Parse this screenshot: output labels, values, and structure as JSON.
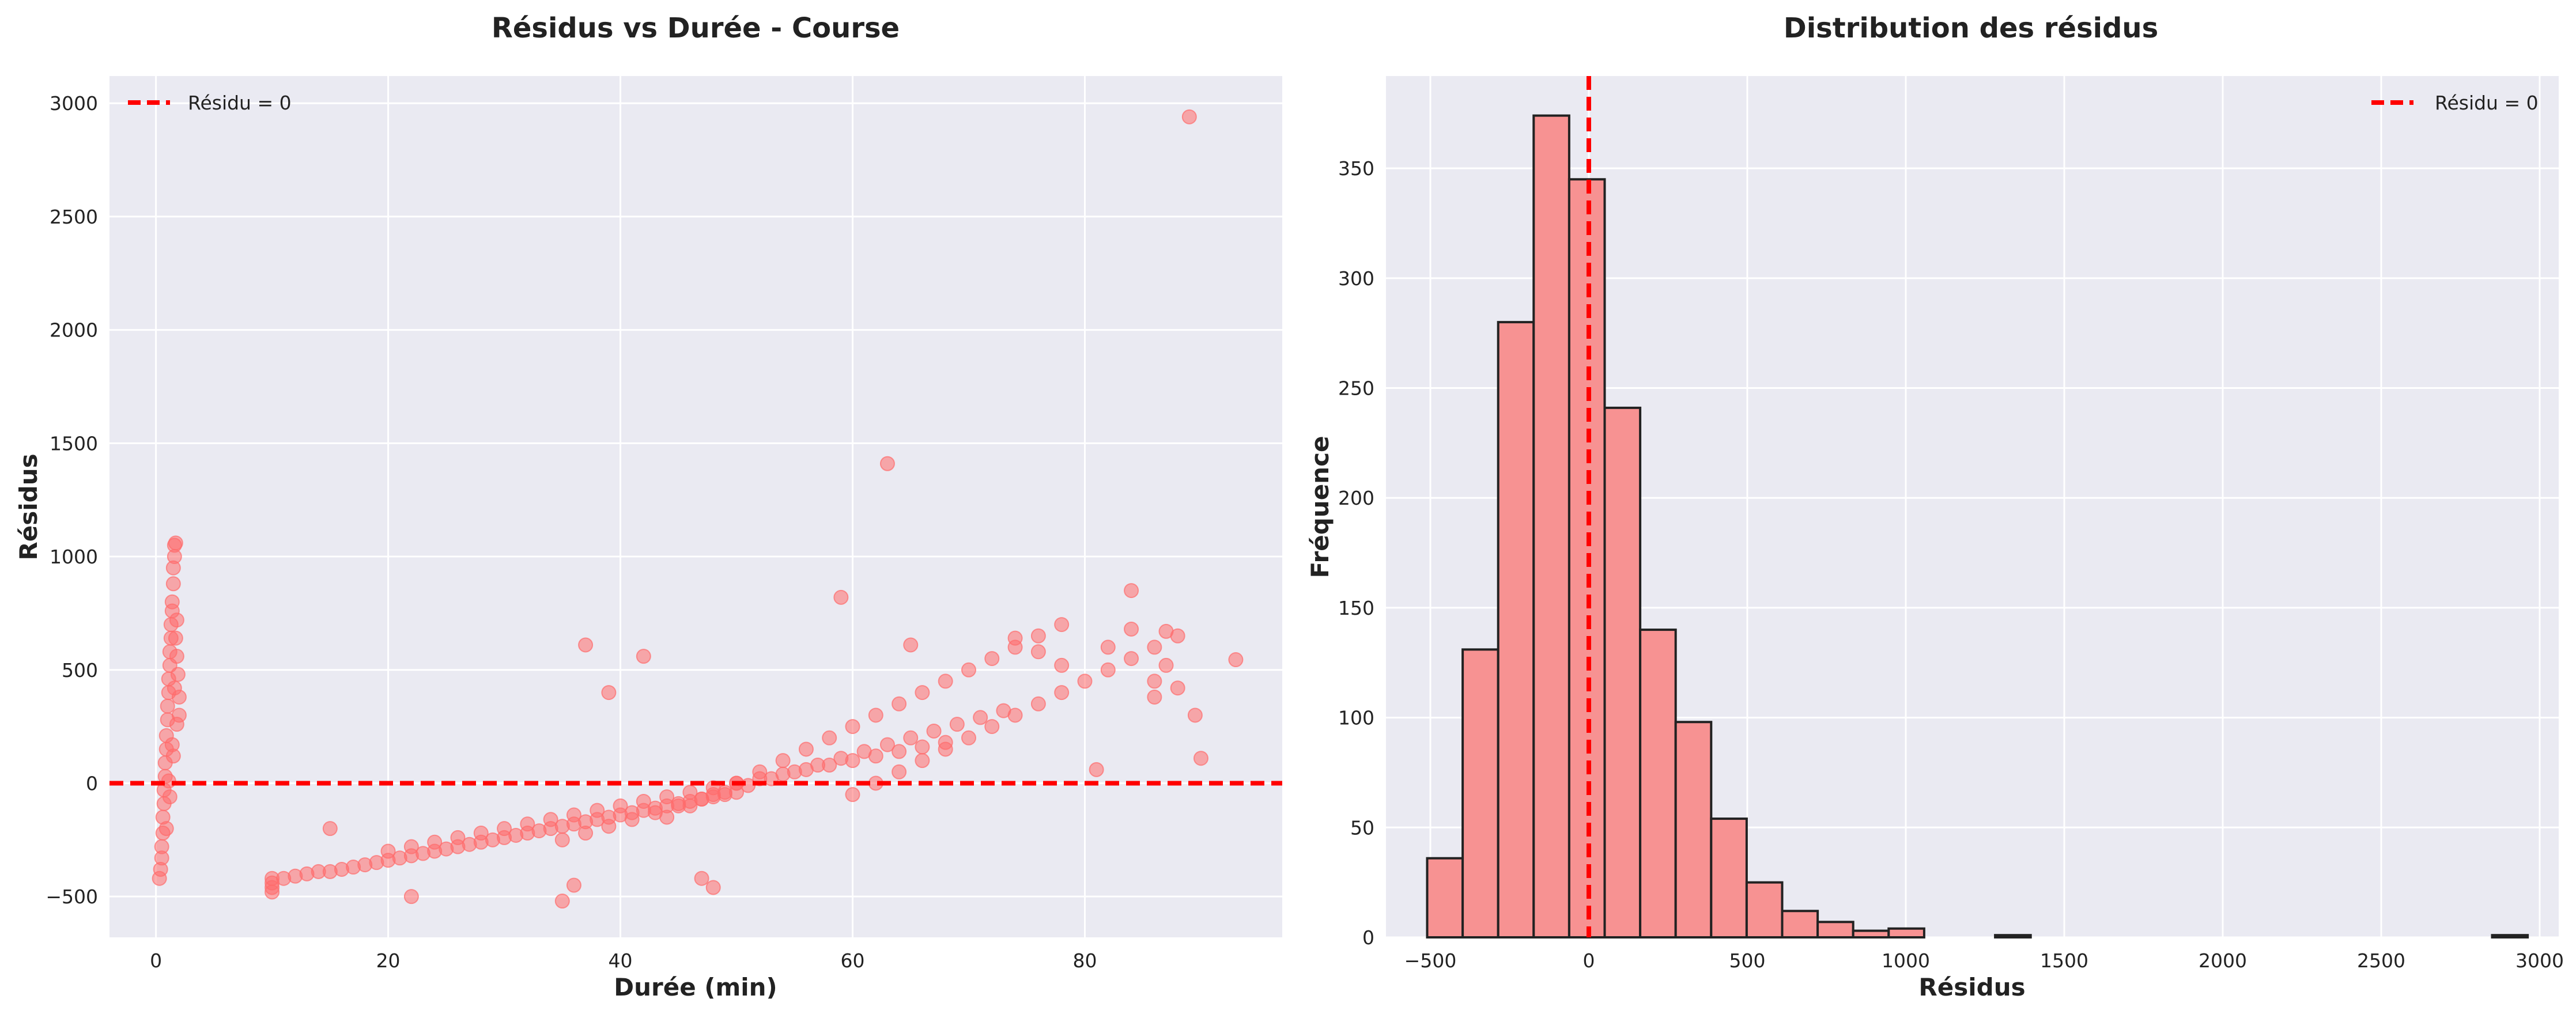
{
  "chart_data": [
    {
      "type": "scatter",
      "title": "Résidus vs Durée - Course",
      "xlabel": "Durée (min)",
      "ylabel": "Résidus",
      "xlim": [
        -4,
        97
      ],
      "ylim": [
        -680,
        3120
      ],
      "xticks": [
        0,
        20,
        40,
        60,
        80
      ],
      "yticks": [
        -500,
        0,
        500,
        1000,
        1500,
        2000,
        2500,
        3000
      ],
      "grid": true,
      "legend": {
        "placement": "top-left",
        "entries": [
          "Résidu = 0"
        ]
      },
      "reference_line": {
        "label": "Résidu = 0",
        "y": 0,
        "color": "#ff0000"
      },
      "point_color": "#ff6b6b",
      "series": [
        {
          "points_note": "representative sample read off the plot",
          "x": [
            0.3,
            0.4,
            0.5,
            0.5,
            0.6,
            0.6,
            0.7,
            0.7,
            0.8,
            0.8,
            0.9,
            0.9,
            1.0,
            1.0,
            1.1,
            1.1,
            1.2,
            1.2,
            1.3,
            1.3,
            1.4,
            1.4,
            1.5,
            1.5,
            1.6,
            1.6,
            1.7,
            1.7,
            1.8,
            1.8,
            1.9,
            2.0,
            2.0,
            1.2,
            1.5,
            1.8,
            0.9,
            1.1,
            1.4,
            1.6,
            10,
            10,
            10,
            10,
            11,
            12,
            13,
            14,
            15,
            16,
            17,
            18,
            19,
            20,
            21,
            22,
            23,
            24,
            25,
            26,
            27,
            28,
            29,
            30,
            31,
            32,
            33,
            34,
            35,
            36,
            37,
            38,
            39,
            40,
            41,
            42,
            43,
            44,
            45,
            46,
            47,
            48,
            49,
            50,
            20,
            22,
            24,
            26,
            28,
            30,
            32,
            34,
            36,
            38,
            40,
            42,
            44,
            46,
            48,
            50,
            52,
            54,
            56,
            58,
            60,
            62,
            64,
            66,
            68,
            35,
            37,
            39,
            41,
            43,
            45,
            47,
            49,
            51,
            53,
            55,
            57,
            59,
            61,
            63,
            65,
            67,
            69,
            71,
            73,
            44,
            46,
            48,
            50,
            52,
            54,
            56,
            58,
            60,
            62,
            64,
            66,
            68,
            70,
            72,
            74,
            76,
            78,
            60,
            62,
            64,
            66,
            68,
            70,
            72,
            74,
            76,
            78,
            80,
            82,
            84,
            86,
            88,
            37,
            39,
            42,
            35,
            36,
            47,
            48,
            22,
            15,
            59,
            63,
            65,
            74,
            76,
            78,
            82,
            84,
            84,
            86,
            86,
            87,
            87,
            88,
            89,
            90,
            93,
            81,
            89.5
          ],
          "y": [
            -420,
            -380,
            -330,
            -280,
            -220,
            -150,
            -90,
            -30,
            30,
            90,
            150,
            210,
            280,
            340,
            400,
            460,
            520,
            580,
            640,
            700,
            760,
            800,
            880,
            950,
            1000,
            1050,
            1060,
            640,
            720,
            560,
            480,
            380,
            300,
            -60,
            120,
            260,
            -200,
            10,
            170,
            420,
            -480,
            -460,
            -440,
            -420,
            -420,
            -410,
            -400,
            -390,
            -390,
            -380,
            -370,
            -360,
            -350,
            -340,
            -330,
            -320,
            -310,
            -300,
            -290,
            -280,
            -270,
            -260,
            -250,
            -240,
            -230,
            -220,
            -210,
            -200,
            -190,
            -180,
            -170,
            -160,
            -150,
            -140,
            -130,
            -120,
            -110,
            -100,
            -90,
            -80,
            -70,
            -60,
            -50,
            -40,
            -300,
            -280,
            -260,
            -240,
            -220,
            -200,
            -180,
            -160,
            -140,
            -120,
            -100,
            -80,
            -60,
            -40,
            -20,
            0,
            20,
            40,
            60,
            80,
            100,
            120,
            140,
            160,
            180,
            -250,
            -220,
            -190,
            -160,
            -130,
            -100,
            -70,
            -40,
            -10,
            20,
            50,
            80,
            110,
            140,
            170,
            200,
            230,
            260,
            290,
            320,
            -150,
            -100,
            -50,
            0,
            50,
            100,
            150,
            200,
            250,
            300,
            350,
            400,
            450,
            500,
            550,
            600,
            650,
            700,
            -50,
            0,
            50,
            100,
            150,
            200,
            250,
            300,
            350,
            400,
            450,
            500,
            550,
            600,
            650,
            610,
            400,
            560,
            -520,
            -450,
            -420,
            -460,
            -500,
            -200,
            820,
            1410,
            610,
            640,
            580,
            520,
            600,
            850,
            680,
            450,
            380,
            520,
            670,
            420,
            2940,
            110,
            545,
            60,
            300
          ]
        }
      ]
    },
    {
      "type": "bar",
      "title": "Distribution des résidus",
      "xlabel": "Résidus",
      "ylabel": "Fréquence",
      "xlim": [
        -640,
        3060
      ],
      "ylim": [
        0,
        392
      ],
      "xticks": [
        -500,
        0,
        500,
        1000,
        1500,
        2000,
        2500,
        3000
      ],
      "yticks": [
        0,
        50,
        100,
        150,
        200,
        250,
        300,
        350
      ],
      "grid": true,
      "legend": {
        "placement": "top-right",
        "entries": [
          "Résidu = 0"
        ]
      },
      "reference_line": {
        "label": "Résidu = 0",
        "x": 0,
        "color": "#ff0000"
      },
      "bar_color": "#f79292",
      "bin_edges": [
        -510,
        -398,
        -286,
        -174,
        -62,
        50,
        162,
        274,
        386,
        498,
        610,
        722,
        834,
        946,
        1058,
        1170,
        1282,
        1394,
        1506,
        1618,
        1730,
        1842,
        1954,
        2066,
        2178,
        2290,
        2402,
        2514,
        2626,
        2738,
        2850,
        2962
      ],
      "values": [
        36,
        131,
        280,
        374,
        345,
        241,
        140,
        98,
        54,
        25,
        12,
        7,
        3,
        4,
        0,
        0,
        1,
        0,
        0,
        0,
        0,
        0,
        0,
        0,
        0,
        0,
        0,
        0,
        0,
        0,
        1
      ]
    }
  ]
}
